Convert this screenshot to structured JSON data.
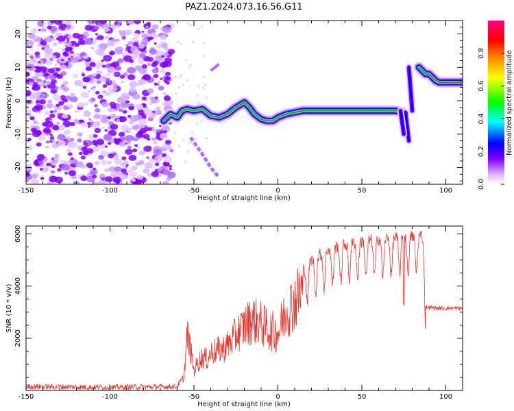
{
  "title": "PAZ1.2024.073.16.56.G11",
  "chart_data": [
    {
      "type": "heatmap",
      "xlabel": "Height of straight line (km)",
      "ylabel": "Frequency (Hz)",
      "xlim": [
        -150,
        110
      ],
      "ylim": [
        -25,
        24
      ],
      "x_ticks": [
        -150,
        -100,
        -50,
        0,
        50,
        100
      ],
      "y_ticks": [
        -20,
        -10,
        0,
        10,
        20
      ],
      "colorbar": {
        "label": "Normalized spectral amplitude",
        "range": [
          0,
          1
        ],
        "ticks": [
          "0.0",
          "0.2",
          "0.4",
          "0.6",
          "0.8"
        ],
        "colormap": [
          "#ffffff",
          "#d9b8ff",
          "#8a00ff",
          "#0000ff",
          "#00ffff",
          "#00ff00",
          "#ffff00",
          "#ff8000",
          "#ff0000",
          "#ff0080"
        ]
      },
      "ridge": {
        "x": [
          -68,
          -66,
          -64,
          -62,
          -60,
          -57,
          -54,
          -50,
          -45,
          -40,
          -35,
          -30,
          -25,
          -20,
          -17,
          -14,
          -10,
          -7,
          -3,
          0,
          5,
          10,
          15,
          20,
          30,
          40,
          50,
          60,
          70,
          74
        ],
        "y": [
          -6,
          -5,
          -4,
          -4.5,
          -5,
          -3,
          -2.5,
          -3,
          -2.5,
          -4.5,
          -5,
          -4,
          -2,
          -0.5,
          -2,
          -4,
          -5.5,
          -6,
          -6,
          -5,
          -4,
          -3.5,
          -3,
          -3,
          -3,
          -3,
          -3,
          -3,
          -3,
          -3.5
        ]
      },
      "ridge_upper": {
        "x": [
          84,
          86,
          88,
          90,
          92,
          94,
          96,
          100,
          105,
          110
        ],
        "y": [
          10,
          9,
          8,
          8,
          7,
          6,
          5.5,
          5.5,
          5.5,
          5.5
        ]
      }
    },
    {
      "type": "line",
      "xlabel": "Height of straight line (km)",
      "ylabel": "SNR (10 * v/v)",
      "xlim": [
        -150,
        110
      ],
      "ylim": [
        0,
        6300
      ],
      "x_ticks": [
        -150,
        -100,
        -50,
        0,
        50,
        100
      ],
      "y_ticks": [
        2000,
        4000,
        6000
      ],
      "series_color": "#e8332a",
      "envelope": {
        "x": [
          -150,
          -100,
          -60,
          -56,
          -54,
          -52,
          -50,
          -48,
          -45,
          -42,
          -40,
          -36,
          -32,
          -28,
          -25,
          -20,
          -15,
          -10,
          -5,
          0,
          5,
          10,
          15,
          20,
          30,
          40,
          50,
          60,
          70,
          75,
          80,
          87,
          88,
          95,
          100,
          110
        ],
        "y": [
          150,
          120,
          150,
          600,
          2500,
          1800,
          900,
          1200,
          1500,
          1400,
          1700,
          1800,
          1900,
          2200,
          2500,
          2900,
          3200,
          3000,
          2700,
          2600,
          3600,
          4000,
          4600,
          5000,
          5400,
          5600,
          5700,
          5800,
          5850,
          5900,
          5900,
          5950,
          3200,
          3150,
          3150,
          3150
        ]
      }
    }
  ]
}
